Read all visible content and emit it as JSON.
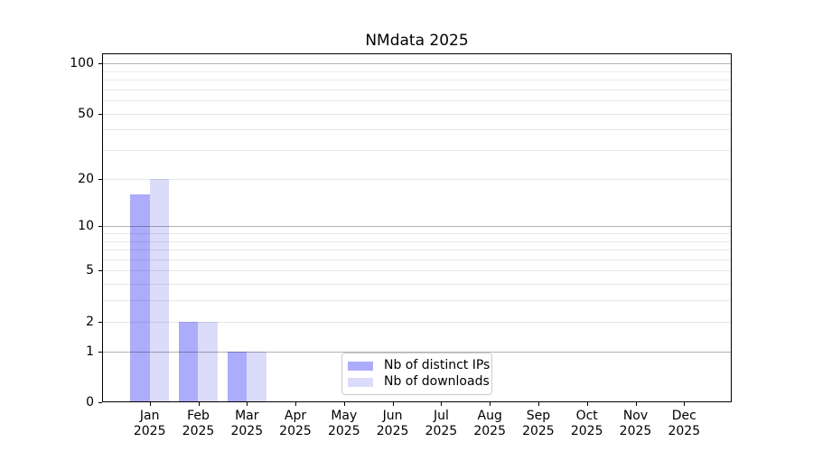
{
  "chart_data": {
    "type": "bar",
    "title": "NMdata 2025",
    "categories": [
      "Jan",
      "Feb",
      "Mar",
      "Apr",
      "May",
      "Jun",
      "Jul",
      "Aug",
      "Sep",
      "Oct",
      "Nov",
      "Dec"
    ],
    "category_year": "2025",
    "series": [
      {
        "name": "Nb of distinct IPs",
        "color": "#acacfa",
        "values": [
          16,
          2,
          1,
          0,
          0,
          0,
          0,
          0,
          0,
          0,
          0,
          0
        ]
      },
      {
        "name": "Nb of downloads",
        "color": "#dbdbfa",
        "values": [
          20,
          2,
          1,
          0,
          0,
          0,
          0,
          0,
          0,
          0,
          0,
          0
        ]
      }
    ],
    "xlabel": "",
    "ylabel": "",
    "yscale": "log1p",
    "ylim": [
      0,
      115
    ],
    "yticks": [
      0,
      1,
      2,
      5,
      10,
      20,
      50,
      100
    ],
    "grid": {
      "orientation": "horizontal",
      "major_values": [
        1,
        10,
        100
      ],
      "minor_values": [
        2,
        3,
        4,
        5,
        6,
        7,
        8,
        9,
        20,
        30,
        40,
        50,
        60,
        70,
        80,
        90
      ],
      "major_color": "rgba(0,0,0,0.30)",
      "minor_color": "rgba(0,0,0,0.09)",
      "drawn_above_bars": true
    },
    "legend_position": "lower center"
  }
}
